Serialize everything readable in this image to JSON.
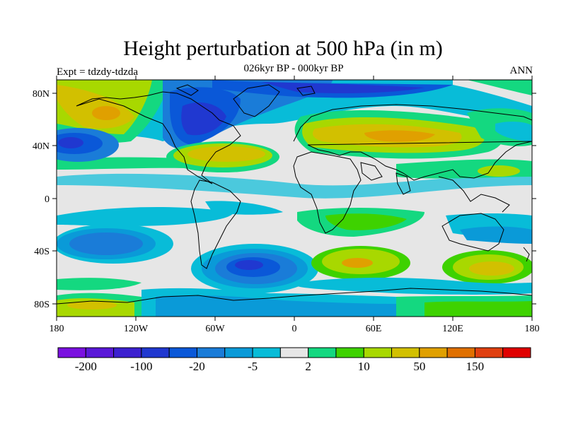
{
  "title": "Height perturbation at 500 hPa (in m)",
  "subtitle": "026kyr BP - 000kyr BP",
  "left_label": "Expt = tdzdy-tdzda",
  "right_label": "ANN",
  "lat_ticks": [
    "80N",
    "40N",
    "0",
    "40S",
    "80S"
  ],
  "lon_ticks": [
    "180",
    "120W",
    "60W",
    "0",
    "60E",
    "120E",
    "180"
  ],
  "colorbar": {
    "colors": [
      "#7a10e0",
      "#5a18d8",
      "#3c20d0",
      "#2038d0",
      "#0a58d8",
      "#1a7cd8",
      "#0a9ad8",
      "#08bcd8",
      "#e6e6e6",
      "#14d880",
      "#3ed200",
      "#a8d800",
      "#d2c000",
      "#e0a000",
      "#e07000",
      "#e04010",
      "#e00000"
    ],
    "labels": [
      {
        "text": "-200",
        "boundary": 1
      },
      {
        "text": "-100",
        "boundary": 3
      },
      {
        "text": "-20",
        "boundary": 5
      },
      {
        "text": "-5",
        "boundary": 7
      },
      {
        "text": "2",
        "boundary": 9
      },
      {
        "text": "10",
        "boundary": 11
      },
      {
        "text": "50",
        "boundary": 13
      },
      {
        "text": "150",
        "boundary": 15
      }
    ]
  }
}
